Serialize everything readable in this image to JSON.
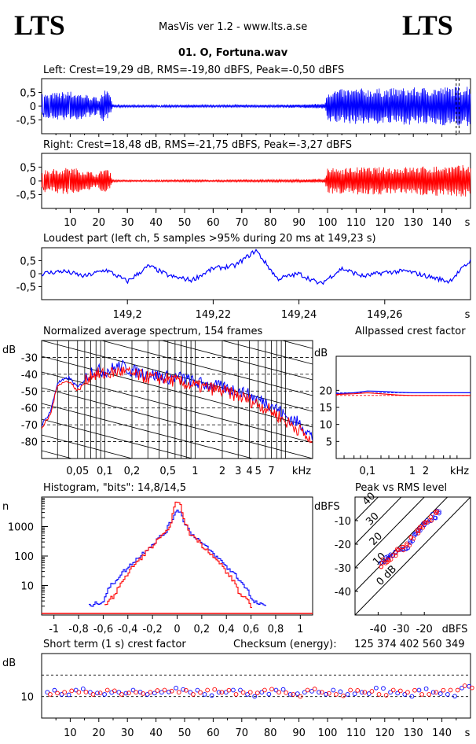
{
  "header": {
    "logo_left": "LTS",
    "logo_right": "LTS",
    "app_title": "MasVis ver 1.2 - www.lts.a.se",
    "track_title": "01. O, Fortuna.wav"
  },
  "colors": {
    "left": "#0000ff",
    "right": "#ff0000",
    "grid": "#000000"
  },
  "chart_data": [
    {
      "id": "left_waveform",
      "type": "area",
      "title": "Left: Crest=19,29 dB, RMS=-19,80 dBFS, Peak=-0,50 dBFS",
      "y_ticks": [
        "0,5",
        "0",
        "-0,5"
      ],
      "ylim": [
        -1,
        1
      ],
      "x": [
        0,
        5,
        10,
        15,
        20,
        21,
        22,
        23,
        24,
        25,
        30,
        40,
        50,
        60,
        70,
        80,
        90,
        99,
        100,
        105,
        110,
        120,
        130,
        140,
        145,
        150
      ],
      "envelope": [
        0.45,
        0.5,
        0.55,
        0.45,
        0.3,
        0.55,
        0.6,
        0.55,
        0.35,
        0.05,
        0.04,
        0.04,
        0.05,
        0.04,
        0.05,
        0.05,
        0.06,
        0.1,
        0.6,
        0.62,
        0.65,
        0.65,
        0.68,
        0.7,
        0.72,
        0.8
      ],
      "xlim": [
        0,
        150
      ],
      "markers": [
        145,
        146
      ]
    },
    {
      "id": "right_waveform",
      "type": "area",
      "title": "Right: Crest=18,48 dB, RMS=-21,75 dBFS, Peak=-3,27 dBFS",
      "y_ticks": [
        "0,5",
        "0",
        "-0,5"
      ],
      "ylim": [
        -1,
        1
      ],
      "x": [
        0,
        5,
        10,
        15,
        20,
        21,
        22,
        23,
        24,
        25,
        30,
        40,
        50,
        60,
        70,
        80,
        90,
        99,
        100,
        105,
        110,
        120,
        130,
        140,
        145,
        150
      ],
      "envelope": [
        0.4,
        0.45,
        0.5,
        0.4,
        0.25,
        0.45,
        0.5,
        0.45,
        0.3,
        0.04,
        0.03,
        0.03,
        0.04,
        0.03,
        0.04,
        0.04,
        0.05,
        0.08,
        0.45,
        0.48,
        0.5,
        0.5,
        0.52,
        0.55,
        0.56,
        0.6
      ],
      "xlim": [
        0,
        150
      ],
      "x_ticks": [
        "10",
        "20",
        "30",
        "40",
        "50",
        "60",
        "70",
        "80",
        "90",
        "100",
        "110",
        "120",
        "130",
        "140"
      ],
      "x_unit": "s"
    },
    {
      "id": "loudest_part",
      "type": "line",
      "title": "Loudest part (left  ch, 5 samples >95% during 20 ms at 149,23 s)",
      "y_ticks": [
        "0,5",
        "0",
        "-0,5"
      ],
      "ylim": [
        -1,
        1
      ],
      "xlim": [
        149.18,
        149.28
      ],
      "x_ticks": [
        "149,2",
        "149,22",
        "149,24",
        "149,26"
      ],
      "x_unit": "s",
      "x": [
        149.18,
        149.185,
        149.19,
        149.195,
        149.2,
        149.205,
        149.21,
        149.215,
        149.22,
        149.225,
        149.23,
        149.235,
        149.24,
        149.245,
        149.25,
        149.255,
        149.26,
        149.265,
        149.27,
        149.275,
        149.28
      ],
      "y": [
        0.0,
        0.1,
        -0.1,
        0.15,
        -0.3,
        0.3,
        -0.1,
        -0.25,
        0.2,
        0.3,
        0.9,
        -0.2,
        0.0,
        -0.4,
        0.2,
        -0.1,
        0.05,
        0.1,
        -0.1,
        -0.3,
        0.5
      ]
    },
    {
      "id": "spectrum",
      "type": "line",
      "title": "Normalized average spectrum, 154 frames",
      "ylabel": "dB",
      "y_ticks": [
        "-30",
        "-40",
        "-50",
        "-60",
        "-70",
        "-80"
      ],
      "ylim": [
        -90,
        -20
      ],
      "x_ticks": [
        "0,05",
        "0,1",
        "0,2",
        "0,5",
        "1",
        "2",
        "3",
        "4",
        "5",
        "7"
      ],
      "x_unit": "kHz",
      "xlim": [
        0.02,
        20
      ],
      "series": [
        {
          "name": "left",
          "x": [
            0.02,
            0.025,
            0.03,
            0.04,
            0.05,
            0.07,
            0.1,
            0.15,
            0.2,
            0.3,
            0.5,
            0.7,
            1,
            2,
            3,
            5,
            7,
            10,
            15,
            20
          ],
          "y": [
            -70,
            -62,
            -45,
            -42,
            -48,
            -38,
            -38,
            -35,
            -38,
            -40,
            -42,
            -42,
            -45,
            -48,
            -50,
            -55,
            -58,
            -65,
            -70,
            -78
          ]
        },
        {
          "name": "right",
          "x": [
            0.02,
            0.025,
            0.03,
            0.04,
            0.05,
            0.07,
            0.1,
            0.15,
            0.2,
            0.3,
            0.5,
            0.7,
            1,
            2,
            3,
            5,
            7,
            10,
            15,
            20
          ],
          "y": [
            -72,
            -64,
            -46,
            -44,
            -50,
            -40,
            -40,
            -38,
            -40,
            -42,
            -43,
            -45,
            -47,
            -50,
            -53,
            -58,
            -62,
            -68,
            -74,
            -82
          ]
        }
      ]
    },
    {
      "id": "allpassed_crest",
      "type": "line",
      "title": "Allpassed crest factor",
      "ylabel": "dB",
      "y_ticks": [
        "20",
        "15",
        "10",
        "5"
      ],
      "ylim": [
        0,
        30
      ],
      "x_ticks": [
        "0,1",
        "1",
        "2"
      ],
      "x_unit": "kHz",
      "xlim": [
        0.02,
        20
      ],
      "series": [
        {
          "name": "left",
          "x": [
            0.02,
            0.05,
            0.1,
            0.2,
            0.5,
            1,
            2,
            5,
            10,
            20
          ],
          "y": [
            19.0,
            19.3,
            19.8,
            19.7,
            19.4,
            19.3,
            19.3,
            19.3,
            19.3,
            19.3
          ]
        },
        {
          "name": "right",
          "x": [
            0.02,
            0.05,
            0.1,
            0.2,
            0.5,
            1,
            2,
            5,
            10,
            20
          ],
          "y": [
            18.8,
            19.0,
            19.3,
            19.0,
            18.6,
            18.5,
            18.5,
            18.5,
            18.5,
            18.5
          ]
        }
      ],
      "dashed_levels": [
        19.3,
        18.5
      ]
    },
    {
      "id": "histogram",
      "type": "line",
      "title": "Histogram, \"bits\": 14,8/14,5",
      "ylabel": "n",
      "y_ticks": [
        "1000",
        "100",
        "10"
      ],
      "log_y": true,
      "ylim": [
        1,
        10000
      ],
      "x_ticks": [
        "-1",
        "-0,8",
        "-0,6",
        "-0,4",
        "-0,2",
        "0",
        "0,2",
        "0,4",
        "0,6",
        "0,8",
        "1"
      ],
      "xlim": [
        -1.1,
        1.1
      ],
      "series": [
        {
          "name": "left",
          "x": [
            -0.72,
            -0.6,
            -0.5,
            -0.4,
            -0.3,
            -0.2,
            -0.1,
            -0.05,
            0,
            0.05,
            0.1,
            0.2,
            0.3,
            0.4,
            0.5,
            0.6,
            0.7,
            0.72
          ],
          "y": [
            2,
            3,
            15,
            40,
            100,
            250,
            600,
            1500,
            4000,
            1500,
            600,
            250,
            100,
            40,
            15,
            3,
            2,
            2
          ]
        },
        {
          "name": "right",
          "x": [
            -0.6,
            -0.5,
            -0.4,
            -0.3,
            -0.2,
            -0.1,
            -0.05,
            0,
            0.05,
            0.1,
            0.2,
            0.3,
            0.4,
            0.5,
            0.6
          ],
          "y": [
            2,
            5,
            25,
            80,
            220,
            560,
            1400,
            8000,
            1400,
            560,
            220,
            80,
            25,
            5,
            2
          ]
        }
      ]
    },
    {
      "id": "peak_vs_rms",
      "type": "scatter",
      "title": "Peak vs RMS level",
      "ylabel": "dBFS",
      "xlabel": "dBFS",
      "y_ticks": [
        "-10",
        "-20",
        "-30",
        "-40"
      ],
      "x_ticks": [
        "-40",
        "-30",
        "-20"
      ],
      "xlim": [
        -50,
        0
      ],
      "ylim": [
        -50,
        0
      ],
      "diagonal_labels": [
        "40",
        "30",
        "20",
        "10",
        "0 dB"
      ],
      "series": [
        {
          "name": "left",
          "x": [
            -38,
            -36,
            -34,
            -32,
            -30,
            -28,
            -26,
            -24,
            -22,
            -20,
            -18,
            -16,
            -14
          ],
          "y": [
            -27,
            -26,
            -24,
            -23,
            -22,
            -21,
            -19,
            -16,
            -14,
            -12,
            -10,
            -8,
            -6
          ]
        },
        {
          "name": "right",
          "x": [
            -39,
            -37,
            -35,
            -33,
            -31,
            -29,
            -27,
            -25,
            -23,
            -21,
            -19,
            -17,
            -15
          ],
          "y": [
            -29,
            -27,
            -26,
            -24,
            -23,
            -22,
            -20,
            -17,
            -15,
            -13,
            -11,
            -9,
            -7
          ]
        }
      ]
    },
    {
      "id": "short_term_crest",
      "type": "scatter",
      "title": "Short term (1 s) crest factor",
      "checksum_label": "Checksum (energy):",
      "checksum_value": "125 374 402 560 349",
      "ylabel": "dB",
      "y_ticks": [
        "10"
      ],
      "ylim": [
        0,
        30
      ],
      "xlim": [
        0,
        150
      ],
      "x_ticks": [
        "10",
        "20",
        "30",
        "40",
        "50",
        "60",
        "70",
        "80",
        "90",
        "100",
        "110",
        "120",
        "130",
        "140"
      ],
      "x_unit": "s",
      "dashed_levels": [
        10,
        20
      ],
      "series": [
        {
          "name": "left",
          "x": [
            2,
            7,
            12,
            17,
            22,
            27,
            32,
            37,
            42,
            47,
            52,
            57,
            62,
            67,
            72,
            77,
            82,
            87,
            92,
            97,
            102,
            107,
            112,
            117,
            122,
            127,
            132,
            137,
            142,
            147
          ],
          "y": [
            12,
            11,
            13,
            12,
            11,
            12,
            13,
            11,
            12,
            14,
            12,
            11,
            12,
            13,
            11,
            12,
            13,
            11,
            12,
            12,
            13,
            11,
            12,
            14,
            12,
            11,
            13,
            12,
            11,
            14
          ]
        },
        {
          "name": "right",
          "x": [
            3,
            8,
            13,
            18,
            23,
            28,
            33,
            38,
            43,
            48,
            53,
            58,
            63,
            68,
            73,
            78,
            83,
            88,
            93,
            98,
            103,
            108,
            113,
            118,
            123,
            128,
            133,
            138,
            143,
            148
          ],
          "y": [
            11,
            12,
            12,
            11,
            13,
            11,
            12,
            12,
            13,
            12,
            11,
            13,
            12,
            11,
            12,
            13,
            12,
            11,
            13,
            12,
            11,
            13,
            12,
            11,
            13,
            12,
            11,
            12,
            13,
            15
          ]
        }
      ]
    }
  ]
}
